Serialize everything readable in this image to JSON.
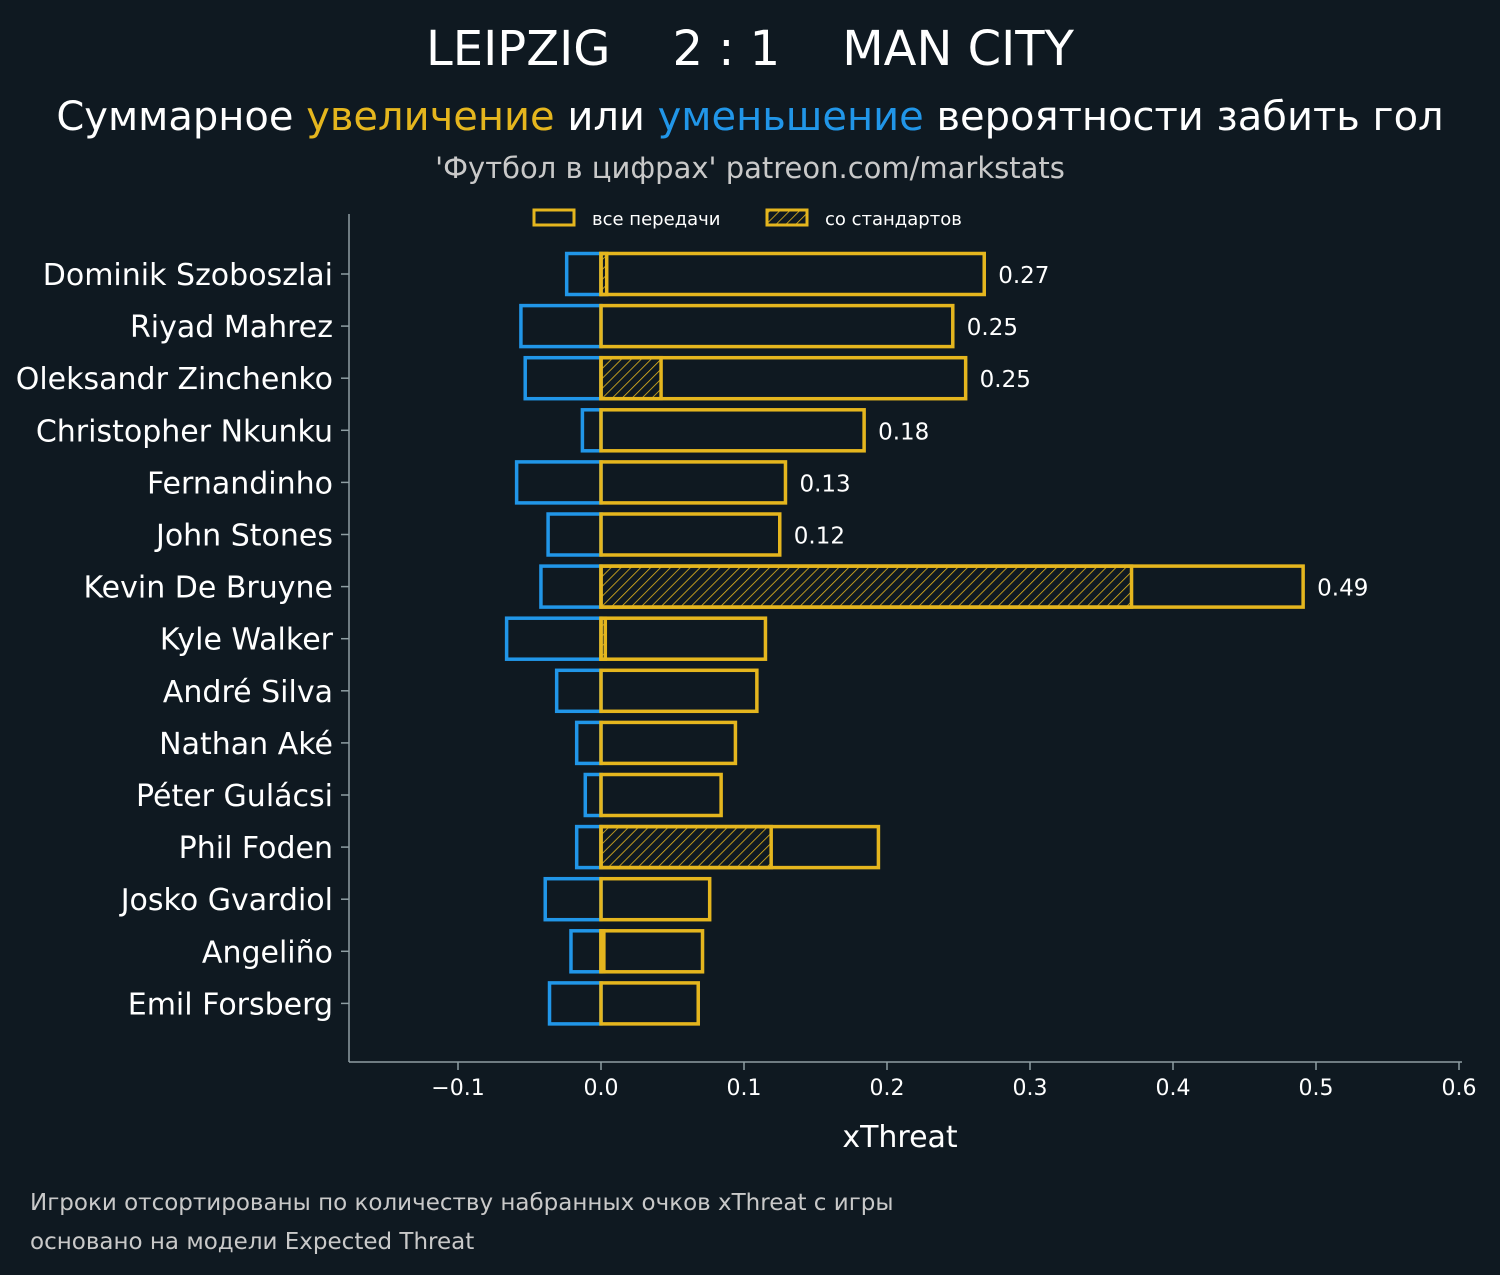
{
  "colors": {
    "background": "#0f1921",
    "increase": "#e5b61e",
    "decrease": "#2196e8",
    "axis": "#8f9ea3",
    "text": "#ffffff",
    "muted": "#c9c9c9"
  },
  "header": {
    "home_team": "LEIPZIG",
    "score": "2 : 1",
    "away_team": "MAN CITY",
    "subtitle_part1": "Суммарное ",
    "subtitle_increase": "увеличение",
    "subtitle_part2": " или ",
    "subtitle_decrease": "уменьшение",
    "subtitle_part3": " вероятности забить гол",
    "source": "'Футбол в цифрах' patreon.com/markstats"
  },
  "footer": {
    "note1": "Игроки отсортированы по количеству набранных очков xThreat с игры",
    "note2": "основано на модели Expected Threat"
  },
  "chart_data": {
    "type": "bar",
    "orientation": "horizontal",
    "xlabel": "xThreat",
    "xlim": [
      -0.175,
      0.6
    ],
    "xticks": [
      -0.1,
      0.0,
      0.1,
      0.2,
      0.3,
      0.4,
      0.5,
      0.6
    ],
    "xtick_labels": [
      "−0.1",
      "0.0",
      "0.1",
      "0.2",
      "0.3",
      "0.4",
      "0.5",
      "0.6"
    ],
    "legend": {
      "position": "top-center",
      "all_passes": "все передачи",
      "set_pieces": "со стандартов"
    },
    "categories": [
      "Dominik Szoboszlai",
      "Riyad Mahrez",
      "Oleksandr Zinchenko",
      "Christopher Nkunku",
      "Fernandinho",
      "John Stones",
      "Kevin De Bruyne",
      "Kyle Walker",
      "André Silva",
      "Nathan Aké",
      "Péter Gulácsi",
      "Phil Foden",
      "Josko Gvardiol",
      "Angeliño",
      "Emil Forsberg"
    ],
    "series": [
      {
        "name": "увеличение (все передачи)",
        "values": [
          0.268,
          0.246,
          0.255,
          0.184,
          0.129,
          0.125,
          0.491,
          0.115,
          0.109,
          0.094,
          0.084,
          0.194,
          0.076,
          0.071,
          0.068
        ]
      },
      {
        "name": "увеличение (со стандартов)",
        "values": [
          0.004,
          0.0,
          0.042,
          0.0,
          0.0,
          0.0,
          0.371,
          0.003,
          0.0,
          0.0,
          0.0,
          0.119,
          0.0,
          0.002,
          0.0
        ]
      },
      {
        "name": "уменьшение",
        "values": [
          -0.024,
          -0.056,
          -0.053,
          -0.013,
          -0.059,
          -0.037,
          -0.042,
          -0.066,
          -0.031,
          -0.017,
          -0.011,
          -0.017,
          -0.039,
          -0.021,
          -0.036
        ]
      }
    ],
    "value_labels": [
      "0.27",
      "0.25",
      "0.25",
      "0.18",
      "0.13",
      "0.12",
      "0.49",
      "",
      "",
      "",
      "",
      "",
      "",
      "",
      ""
    ]
  }
}
